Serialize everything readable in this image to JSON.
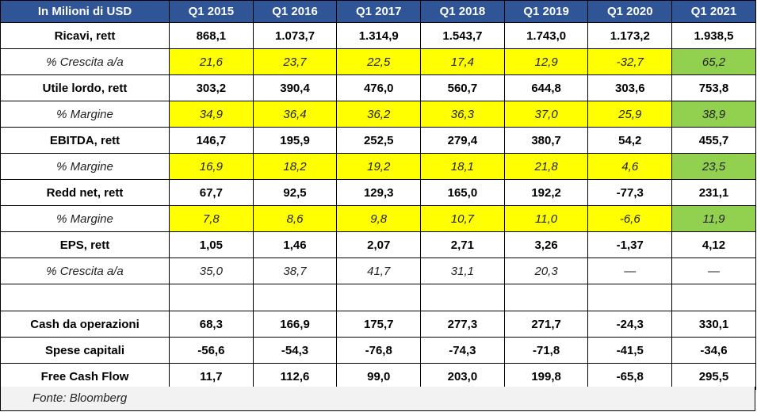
{
  "header": {
    "label": "In Milioni di USD",
    "years": [
      "Q1 2015",
      "Q1 2016",
      "Q1 2017",
      "Q1 2018",
      "Q1 2019",
      "Q1 2020",
      "Q1 2021"
    ]
  },
  "rows": [
    {
      "key": "ricavi",
      "label": "Ricavi, rett",
      "style": "bold",
      "values": [
        "868,1",
        "1.073,7",
        "1.314,9",
        "1.543,7",
        "1.743,0",
        "1.173,2",
        "1.938,5"
      ]
    },
    {
      "key": "crescita-ricavi",
      "label": "% Crescita a/a",
      "style": "italic",
      "highlight": true,
      "values": [
        "21,6",
        "23,7",
        "22,5",
        "17,4",
        "12,9",
        "-32,7",
        "65,2"
      ]
    },
    {
      "key": "utile-lordo",
      "label": "Utile lordo, rett",
      "style": "bold",
      "values": [
        "303,2",
        "390,4",
        "476,0",
        "560,7",
        "644,8",
        "303,6",
        "753,8"
      ]
    },
    {
      "key": "margine-lordo",
      "label": "% Margine",
      "style": "italic",
      "highlight": true,
      "values": [
        "34,9",
        "36,4",
        "36,2",
        "36,3",
        "37,0",
        "25,9",
        "38,9"
      ]
    },
    {
      "key": "ebitda",
      "label": "EBITDA, rett",
      "style": "bold",
      "values": [
        "146,7",
        "195,9",
        "252,5",
        "279,4",
        "380,7",
        "54,2",
        "455,7"
      ]
    },
    {
      "key": "margine-ebitda",
      "label": "% Margine",
      "style": "italic",
      "highlight": true,
      "values": [
        "16,9",
        "18,2",
        "19,2",
        "18,1",
        "21,8",
        "4,6",
        "23,5"
      ]
    },
    {
      "key": "redd-net",
      "label": "Redd net, rett",
      "style": "bold",
      "values": [
        "67,7",
        "92,5",
        "129,3",
        "165,0",
        "192,2",
        "-77,3",
        "231,1"
      ]
    },
    {
      "key": "margine-netto",
      "label": "% Margine",
      "style": "italic",
      "highlight": true,
      "values": [
        "7,8",
        "8,6",
        "9,8",
        "10,7",
        "11,0",
        "-6,6",
        "11,9"
      ]
    },
    {
      "key": "eps",
      "label": "EPS, rett",
      "style": "bold",
      "values": [
        "1,05",
        "1,46",
        "2,07",
        "2,71",
        "3,26",
        "-1,37",
        "4,12"
      ]
    },
    {
      "key": "crescita-eps",
      "label": "% Crescita a/a",
      "style": "italic",
      "values": [
        "35,0",
        "38,7",
        "41,7",
        "31,1",
        "20,3",
        "—",
        "—"
      ]
    },
    {
      "key": "spacer",
      "label": "",
      "style": "spacer",
      "values": [
        "",
        "",
        "",
        "",
        "",
        "",
        ""
      ]
    },
    {
      "key": "cash-operazioni",
      "label": "Cash da operazioni",
      "style": "bold",
      "values": [
        "68,3",
        "166,9",
        "175,7",
        "277,3",
        "271,7",
        "-24,3",
        "330,1"
      ]
    },
    {
      "key": "spese-capitali",
      "label": "Spese capitali",
      "style": "bold",
      "values": [
        "-56,6",
        "-54,3",
        "-76,8",
        "-74,3",
        "-71,8",
        "-41,5",
        "-34,6"
      ]
    },
    {
      "key": "free-cash-flow",
      "label": "Free Cash Flow",
      "style": "bold",
      "values": [
        "11,7",
        "112,6",
        "99,0",
        "203,0",
        "199,8",
        "-65,8",
        "295,5"
      ]
    }
  ],
  "colors": {
    "header_bg": "#2f5597",
    "highlight_yellow": "#ffff00",
    "highlight_green": "#92d050",
    "footer_bg": "#f2f2f2"
  },
  "footer": {
    "source": "Fonte: Bloomberg"
  }
}
